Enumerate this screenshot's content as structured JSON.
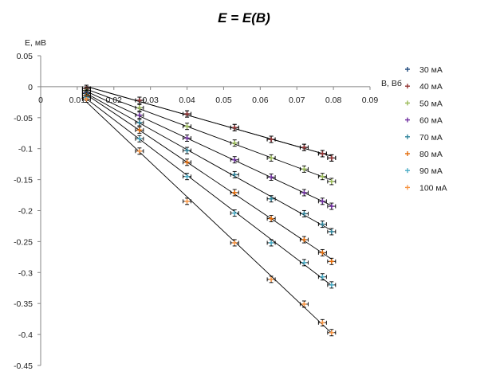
{
  "chart_data": {
    "type": "scatter",
    "title": "E = E(B)",
    "xlabel": "B, Вб",
    "ylabel": "E, мВ",
    "xlim": [
      0,
      0.09
    ],
    "ylim": [
      -0.45,
      0.05
    ],
    "x_ticks": [
      "0",
      "0.01",
      "0.02",
      "0.03",
      "0.04",
      "0.05",
      "0.06",
      "0.07",
      "0.08",
      "0.09"
    ],
    "y_ticks": [
      "0.05",
      "0",
      "-0.05",
      "-0.1",
      "-0.15",
      "-0.2",
      "-0.25",
      "-0.3",
      "-0.35",
      "-0.4",
      "-0.45"
    ],
    "grid": false,
    "legend_position": "right",
    "error_bars": true,
    "trendlines": true,
    "series": [
      {
        "name": "30 мА",
        "color": "#1f497d",
        "x": [
          0.0125,
          0.027,
          0.04,
          0.053,
          0.063,
          0.072,
          0.077,
          0.0795
        ],
        "y": [
          -0.0028,
          -0.022,
          -0.044,
          -0.066,
          -0.085,
          -0.098,
          -0.108,
          -0.115
        ]
      },
      {
        "name": "40 мА",
        "color": "#943634",
        "x": [
          0.0125,
          0.027,
          0.04,
          0.053,
          0.063,
          0.072,
          0.077,
          0.0795
        ],
        "y": [
          -0.0028,
          -0.022,
          -0.044,
          -0.066,
          -0.085,
          -0.098,
          -0.108,
          -0.115
        ]
      },
      {
        "name": "50 мА",
        "color": "#9bbb59",
        "x": [
          0.0125,
          0.027,
          0.04,
          0.053,
          0.063,
          0.072,
          0.077,
          0.0795
        ],
        "y": [
          -0.006,
          -0.034,
          -0.064,
          -0.091,
          -0.115,
          -0.133,
          -0.145,
          -0.153
        ]
      },
      {
        "name": "60 мА",
        "color": "#7030a0",
        "x": [
          0.0125,
          0.027,
          0.04,
          0.053,
          0.063,
          0.072,
          0.077,
          0.0795
        ],
        "y": [
          -0.009,
          -0.046,
          -0.083,
          -0.118,
          -0.146,
          -0.171,
          -0.185,
          -0.193
        ]
      },
      {
        "name": "70 мА",
        "color": "#31859c",
        "x": [
          0.0125,
          0.027,
          0.04,
          0.053,
          0.063,
          0.072,
          0.077,
          0.0795
        ],
        "y": [
          -0.011,
          -0.058,
          -0.103,
          -0.142,
          -0.181,
          -0.205,
          -0.222,
          -0.234
        ]
      },
      {
        "name": "80 мА",
        "color": "#e46c0a",
        "x": [
          0.0125,
          0.027,
          0.04,
          0.053,
          0.063,
          0.072,
          0.077,
          0.0795
        ],
        "y": [
          -0.014,
          -0.07,
          -0.122,
          -0.171,
          -0.213,
          -0.247,
          -0.268,
          -0.282
        ]
      },
      {
        "name": "90 мА",
        "color": "#4bacc6",
        "x": [
          0.0125,
          0.027,
          0.04,
          0.053,
          0.063,
          0.072,
          0.077,
          0.0795
        ],
        "y": [
          -0.017,
          -0.084,
          -0.145,
          -0.204,
          -0.252,
          -0.284,
          -0.307,
          -0.32
        ]
      },
      {
        "name": "100 мА",
        "color": "#f79646",
        "x": [
          0.0125,
          0.027,
          0.04,
          0.053,
          0.063,
          0.072,
          0.077,
          0.0795
        ],
        "y": [
          -0.02,
          -0.104,
          -0.185,
          -0.252,
          -0.311,
          -0.351,
          -0.381,
          -0.397
        ]
      }
    ]
  }
}
